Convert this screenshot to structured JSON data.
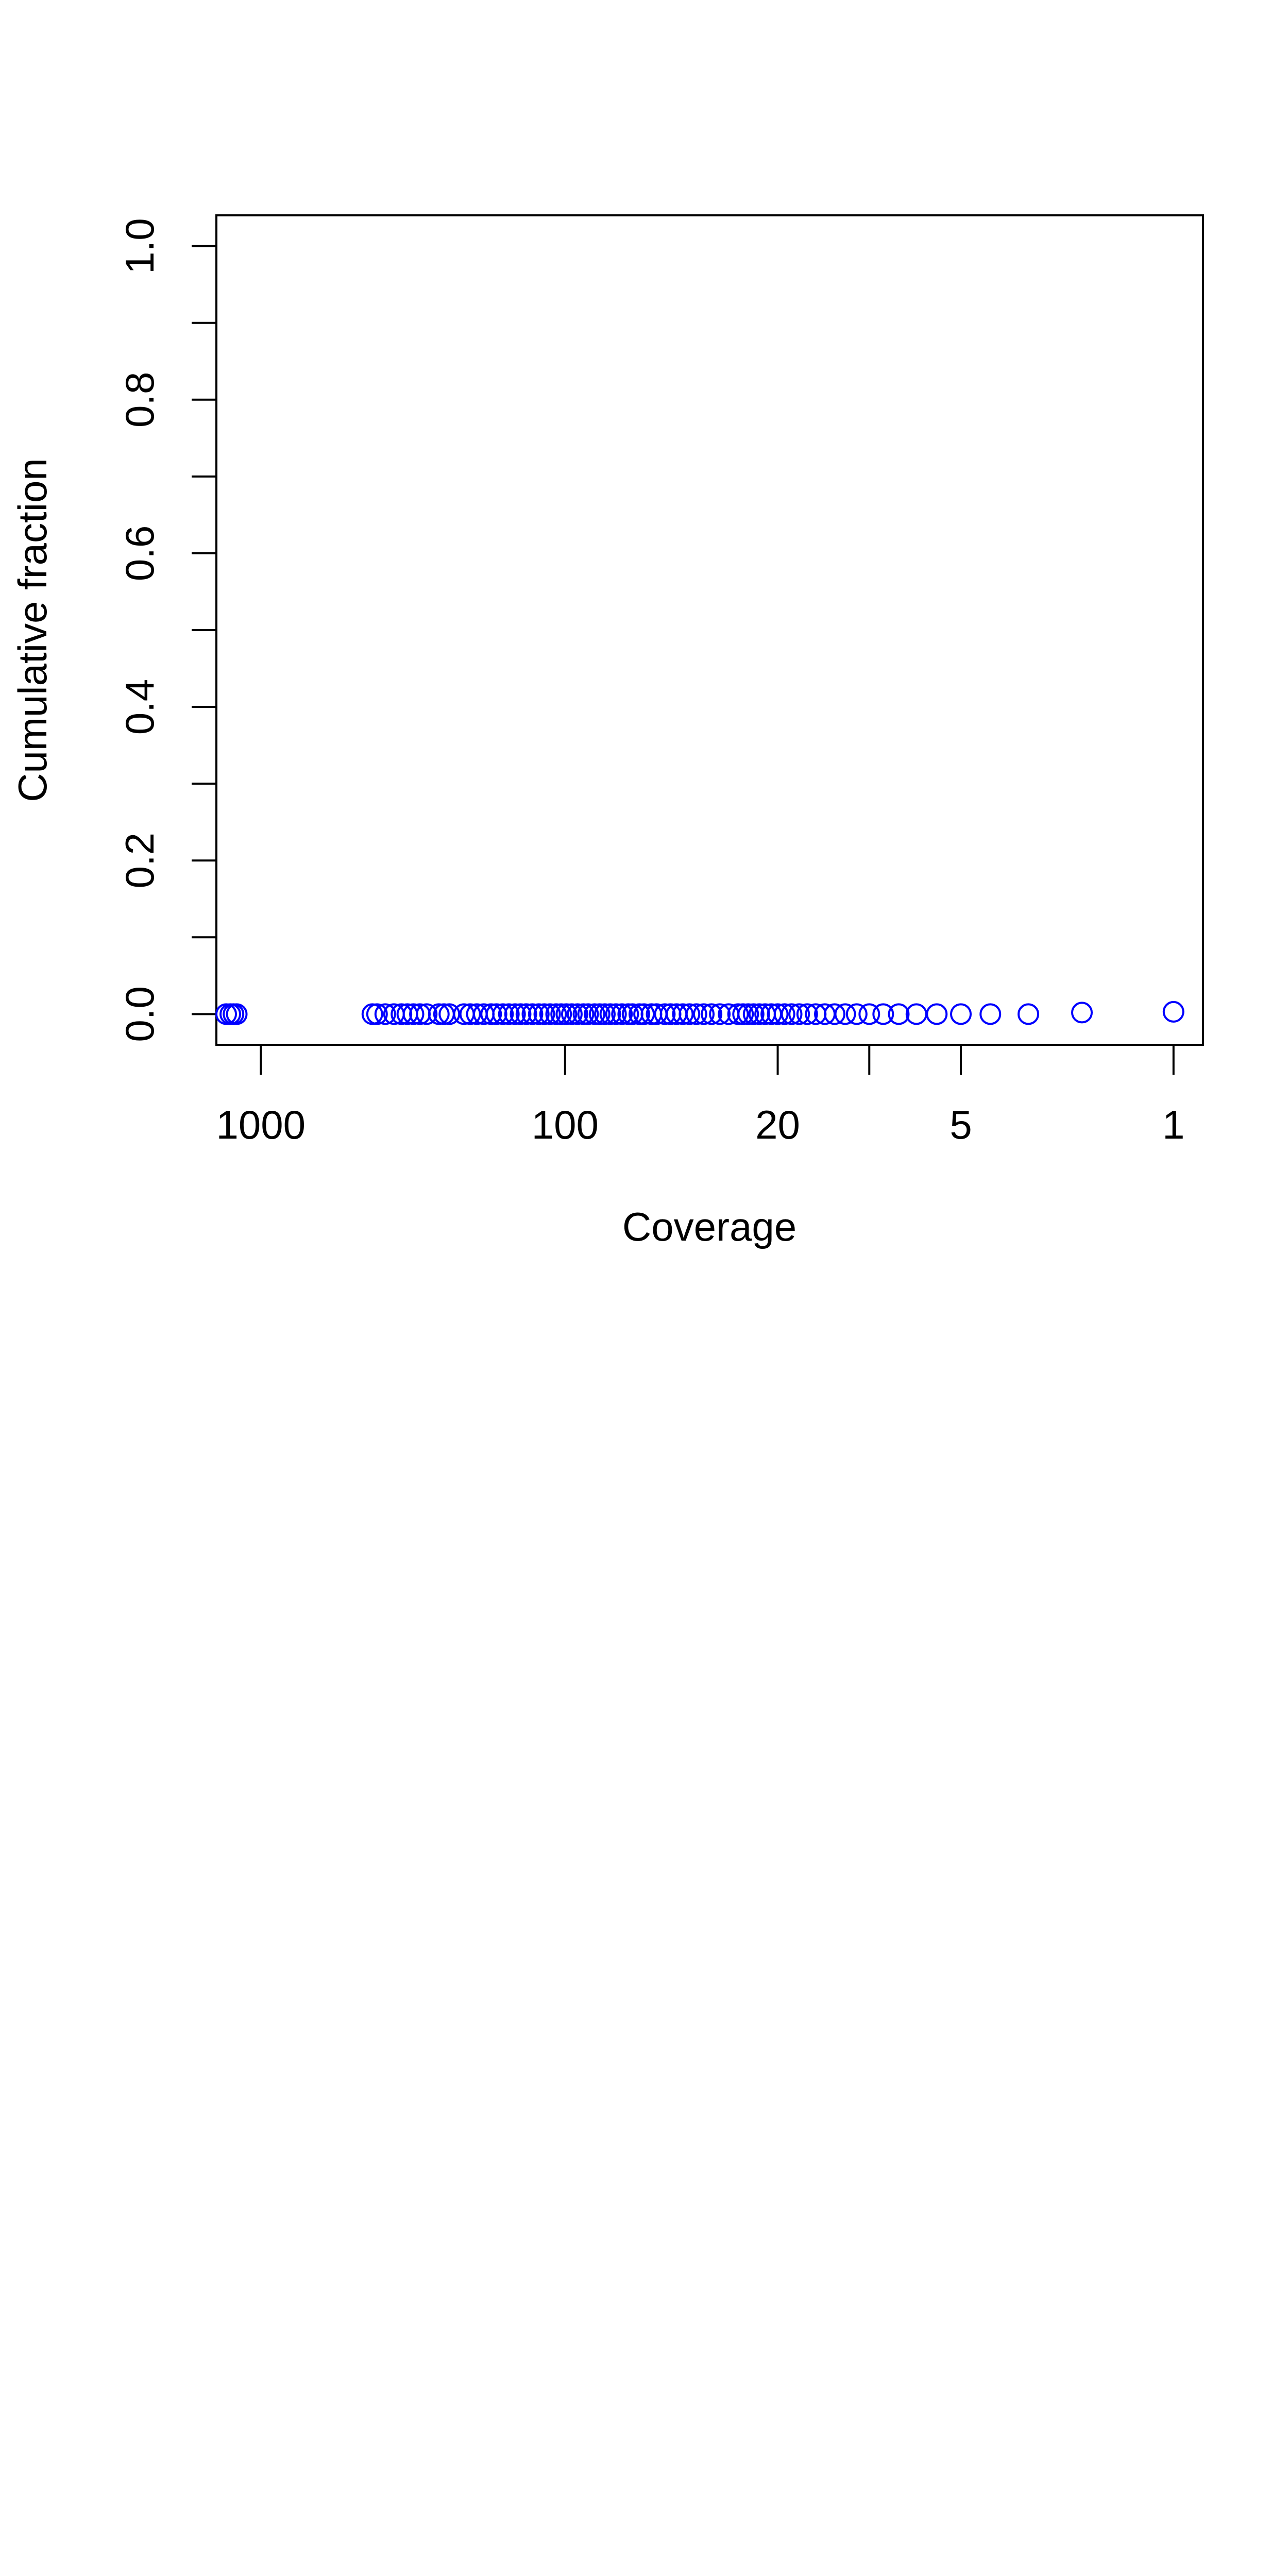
{
  "chart_data": {
    "type": "scatter",
    "title": "",
    "xlabel": "Coverage",
    "ylabel": "Cumulative fraction",
    "x_scale": "log",
    "x_reversed": true,
    "xlim": [
      1400,
      0.8
    ],
    "ylim": [
      -0.04,
      1.04
    ],
    "x_ticks": [
      1000,
      100,
      20,
      10,
      5,
      1
    ],
    "x_tick_labels": [
      "1000",
      "100",
      "20",
      "",
      "5",
      "1"
    ],
    "y_ticks": [
      0.0,
      0.1,
      0.2,
      0.3,
      0.4,
      0.5,
      0.6,
      0.7,
      0.8,
      0.9,
      1.0
    ],
    "y_tick_labels": [
      "0.0",
      "",
      "0.2",
      "",
      "0.4",
      "",
      "0.6",
      "",
      "0.8",
      "",
      "1.0"
    ],
    "grid": false,
    "legend": "none",
    "marker": "open-circle",
    "color": "#0000ff",
    "series": [
      {
        "values": [
          [
            1300,
            0.0
          ],
          [
            1260,
            0.0
          ],
          [
            1230,
            0.0
          ],
          [
            1200,
            0.0
          ],
          [
            430,
            0.0
          ],
          [
            415,
            0.0
          ],
          [
            390,
            0.0
          ],
          [
            365,
            0.0
          ],
          [
            345,
            0.0
          ],
          [
            330,
            0.0
          ],
          [
            315,
            0.0
          ],
          [
            300,
            0.0
          ],
          [
            285,
            0.0
          ],
          [
            260,
            0.0
          ],
          [
            250,
            0.0
          ],
          [
            240,
            0.0
          ],
          [
            215,
            0.0
          ],
          [
            205,
            0.0
          ],
          [
            195,
            0.0
          ],
          [
            185,
            0.0
          ],
          [
            175,
            0.0
          ],
          [
            168,
            0.0
          ],
          [
            160,
            0.0
          ],
          [
            153,
            0.0
          ],
          [
            146,
            0.0
          ],
          [
            140,
            0.0
          ],
          [
            134,
            0.0
          ],
          [
            128,
            0.0
          ],
          [
            122,
            0.0
          ],
          [
            117,
            0.0
          ],
          [
            112,
            0.0
          ],
          [
            107,
            0.0
          ],
          [
            103,
            0.0
          ],
          [
            99,
            0.0
          ],
          [
            95,
            0.0
          ],
          [
            91,
            0.0
          ],
          [
            87,
            0.0
          ],
          [
            84,
            0.0
          ],
          [
            80,
            0.0
          ],
          [
            77,
            0.0
          ],
          [
            74,
            0.0
          ],
          [
            71,
            0.0
          ],
          [
            68,
            0.0
          ],
          [
            65,
            0.0
          ],
          [
            62,
            0.0
          ],
          [
            60,
            0.0
          ],
          [
            57,
            0.0
          ],
          [
            55,
            0.0
          ],
          [
            52,
            0.0
          ],
          [
            50,
            0.0
          ],
          [
            47,
            0.0
          ],
          [
            45,
            0.0
          ],
          [
            43,
            0.0
          ],
          [
            41,
            0.0
          ],
          [
            39,
            0.0
          ],
          [
            37,
            0.0
          ],
          [
            35,
            0.0
          ],
          [
            33,
            0.0
          ],
          [
            31,
            0.0
          ],
          [
            29,
            0.0
          ],
          [
            27,
            0.0
          ],
          [
            26,
            0.0
          ],
          [
            25,
            0.0
          ],
          [
            24,
            0.0
          ],
          [
            23,
            0.0
          ],
          [
            22,
            0.0
          ],
          [
            21,
            0.0
          ],
          [
            20,
            0.0
          ],
          [
            19,
            0.0
          ],
          [
            18,
            0.0
          ],
          [
            17,
            0.0
          ],
          [
            16,
            0.0
          ],
          [
            15,
            0.0
          ],
          [
            14,
            0.0
          ],
          [
            13,
            0.0
          ],
          [
            12,
            0.0
          ],
          [
            11,
            0.0
          ],
          [
            10,
            0.0
          ],
          [
            9,
            0.0
          ],
          [
            8,
            0.0
          ],
          [
            7,
            0.0
          ],
          [
            6,
            0.0
          ],
          [
            5,
            0.0
          ],
          [
            4,
            0.0
          ],
          [
            3,
            0.0
          ],
          [
            2,
            0.002
          ],
          [
            1,
            0.003
          ]
        ]
      }
    ]
  }
}
